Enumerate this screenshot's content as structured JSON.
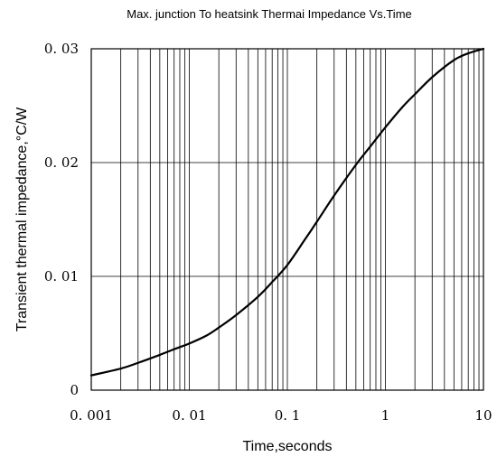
{
  "chart_data": {
    "type": "line",
    "title": "Max. junction To heatsink Thermai Impedance Vs.Time",
    "xlabel": "Time,seconds",
    "ylabel": "Transient thermal impedance,°C/W",
    "x_scale": "log",
    "xlim": [
      0.001,
      10
    ],
    "ylim": [
      0,
      0.03
    ],
    "x_tick_values": [
      0.001,
      0.01,
      0.1,
      1,
      10
    ],
    "x_tick_labels": [
      "0. 001",
      "0. 01",
      "0. 1",
      "1",
      "10"
    ],
    "y_tick_values": [
      0,
      0.01,
      0.02,
      0.03
    ],
    "y_tick_labels": [
      "0",
      "0. 01",
      "0. 02",
      "0. 03"
    ],
    "grid": true,
    "line_color": "#000000",
    "series": [
      {
        "x": [
          0.001,
          0.002,
          0.003,
          0.005,
          0.007,
          0.01,
          0.015,
          0.02,
          0.03,
          0.05,
          0.07,
          0.1,
          0.15,
          0.2,
          0.3,
          0.5,
          0.7,
          1,
          1.5,
          2,
          3,
          5,
          7,
          10
        ],
        "y": [
          0.0013,
          0.0019,
          0.0024,
          0.0031,
          0.0036,
          0.0041,
          0.0048,
          0.0055,
          0.0066,
          0.0082,
          0.0095,
          0.011,
          0.0132,
          0.0148,
          0.0171,
          0.0198,
          0.0214,
          0.0231,
          0.0249,
          0.026,
          0.0275,
          0.029,
          0.0296,
          0.03
        ]
      }
    ]
  }
}
